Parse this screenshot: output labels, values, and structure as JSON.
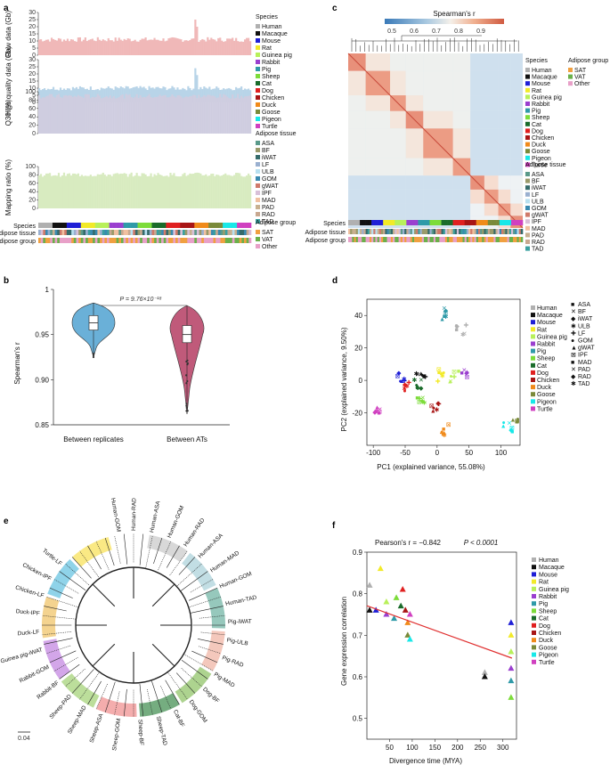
{
  "panel_letters": [
    "a",
    "b",
    "c",
    "d",
    "e",
    "f"
  ],
  "species": [
    {
      "name": "Human",
      "color": "#b0b0b0"
    },
    {
      "name": "Macaque",
      "color": "#111111"
    },
    {
      "name": "Mouse",
      "color": "#1f1fd6"
    },
    {
      "name": "Rat",
      "color": "#f2ea28"
    },
    {
      "name": "Guinea pig",
      "color": "#b8f05a"
    },
    {
      "name": "Rabbit",
      "color": "#9a3fcf"
    },
    {
      "name": "Pig",
      "color": "#2f9aa8"
    },
    {
      "name": "Sheep",
      "color": "#7ddc3a"
    },
    {
      "name": "Cat",
      "color": "#1a6b2a"
    },
    {
      "name": "Dog",
      "color": "#e02020"
    },
    {
      "name": "Chicken",
      "color": "#a81515"
    },
    {
      "name": "Duck",
      "color": "#f08a1a"
    },
    {
      "name": "Goose",
      "color": "#7a8a3a"
    },
    {
      "name": "Pigeon",
      "color": "#18e8e8"
    },
    {
      "name": "Turtle",
      "color": "#d040c0"
    }
  ],
  "tissues": [
    {
      "name": "ASA",
      "color": "#5a9a8a"
    },
    {
      "name": "BF",
      "color": "#9a9a6a"
    },
    {
      "name": "iWAT",
      "color": "#356b6b"
    },
    {
      "name": "LF",
      "color": "#9ab0d0"
    },
    {
      "name": "ULB",
      "color": "#b8e0f0"
    },
    {
      "name": "GOM",
      "color": "#3a8ab0"
    },
    {
      "name": "gWAT",
      "color": "#d07a6a"
    },
    {
      "name": "IPF",
      "color": "#d8c0d8"
    },
    {
      "name": "MAD",
      "color": "#f0c0a0"
    },
    {
      "name": "PAD",
      "color": "#c8b090"
    },
    {
      "name": "RAD",
      "color": "#c8a890"
    },
    {
      "name": "TAD",
      "color": "#3aa0a0"
    }
  ],
  "groups": [
    {
      "name": "SAT",
      "color": "#f0a040"
    },
    {
      "name": "VAT",
      "color": "#6ab04a"
    },
    {
      "name": "Other",
      "color": "#e8a0c8"
    }
  ],
  "legend_titles": {
    "species": "Species",
    "tissue": "Adipose tissue",
    "group": "Adipose group"
  },
  "track_labels": {
    "species": "Species",
    "tissue": "Adipose tissue",
    "group": "Adipose group"
  },
  "chart_data": [
    {
      "type": "bar",
      "panel": "a",
      "subplots": [
        {
          "ylabel": "Raw data (Gb)",
          "ylim": [
            0,
            30
          ],
          "yticks": [
            0,
            5,
            10,
            15,
            20,
            25,
            30
          ],
          "typical_value": 11,
          "outlier_value": 25,
          "color": "#f0b8b8"
        },
        {
          "ylabel": "High quality data (Gb)",
          "ylim": [
            0,
            30
          ],
          "yticks": [
            0,
            5,
            10,
            15,
            20,
            25,
            30
          ],
          "typical_value": 10,
          "outlier_value": 24,
          "color": "#b8d4e8"
        },
        {
          "ylabel": "Q30 (%)",
          "ylim": [
            0,
            100
          ],
          "yticks": [
            0,
            20,
            40,
            60,
            80,
            100
          ],
          "typical_value": 93,
          "color": "#cfcde0"
        },
        {
          "ylabel": "Mapping ratio (%)",
          "ylim": [
            0,
            100
          ],
          "yticks": [
            0,
            20,
            40,
            60,
            80,
            100
          ],
          "typical_value": 84,
          "color": "#d8ebc0"
        }
      ]
    },
    {
      "type": "violin",
      "panel": "b",
      "title": "P = 9.76×10⁻¹⁸",
      "ylabel": "Spearman's r",
      "ylim": [
        0.85,
        1
      ],
      "yticks": [
        "0.85",
        "0.90",
        "0.95",
        "1"
      ],
      "categories": [
        "Between replicates",
        "Between ATs"
      ],
      "series": [
        {
          "name": "Between replicates",
          "median": 0.963,
          "q1": 0.955,
          "q3": 0.971,
          "min": 0.925,
          "max": 0.985,
          "color": "#6ab0d8"
        },
        {
          "name": "Between ATs",
          "median": 0.95,
          "q1": 0.941,
          "q3": 0.96,
          "min": 0.862,
          "max": 0.982,
          "color": "#c05a7a"
        }
      ]
    },
    {
      "type": "heatmap",
      "panel": "c",
      "title": "Spearman's r",
      "colorbar_ticks": [
        "0.5",
        "0.6",
        "0.7",
        "0.8",
        "0.9"
      ],
      "range": [
        0.45,
        1
      ]
    },
    {
      "type": "scatter",
      "panel": "d",
      "xlabel": "PC1 (explained variance, 55.08%)",
      "ylabel": "PC2 (explained variance, 9.50%)",
      "xlim": [
        -110,
        130
      ],
      "ylim": [
        -40,
        50
      ],
      "xticks": [
        -100,
        -50,
        0,
        50,
        100
      ],
      "yticks": [
        -20,
        0,
        20,
        40
      ],
      "tissue_markers": [
        "ASA",
        "BF",
        "iWAT",
        "ULB",
        "LF",
        "GOM",
        "gWAT",
        "IPF",
        "MAD",
        "PAD",
        "RAD",
        "TAD"
      ],
      "clusters": [
        {
          "species": "Human",
          "x": 38,
          "y": 30
        },
        {
          "species": "Macaque",
          "x": -25,
          "y": 5
        },
        {
          "species": "Mouse",
          "x": -55,
          "y": 0
        },
        {
          "species": "Rat",
          "x": 5,
          "y": 2
        },
        {
          "species": "Guinea pig",
          "x": 28,
          "y": 2
        },
        {
          "species": "Rabbit",
          "x": 40,
          "y": 5
        },
        {
          "species": "Pig",
          "x": 15,
          "y": 40
        },
        {
          "species": "Sheep",
          "x": -25,
          "y": -12
        },
        {
          "species": "Cat",
          "x": -30,
          "y": -5
        },
        {
          "species": "Dog",
          "x": -45,
          "y": -5
        },
        {
          "species": "Chicken",
          "x": -5,
          "y": -17
        },
        {
          "species": "Duck",
          "x": 10,
          "y": -32
        },
        {
          "species": "Goose",
          "x": 125,
          "y": -25
        },
        {
          "species": "Pigeon",
          "x": 110,
          "y": -30
        },
        {
          "species": "Turtle",
          "x": -92,
          "y": -18
        }
      ]
    },
    {
      "type": "tree",
      "panel": "e",
      "scale_label": "0.04",
      "leaf_labels": [
        "Human-GOM",
        "Human-RAD",
        "Human-ASA",
        "Human-GOM",
        "Human-RAD",
        "Human-ASA",
        "Human-MAD",
        "Human-GOM",
        "Human-TAD",
        "Pig-iWAT",
        "Pig-ULB",
        "Pig-RAD",
        "Pig-MAD",
        "Dog-BF",
        "Dog-GOM",
        "Cat-BF",
        "Sheep-TAD",
        "Sheep-BF",
        "Sheep-GOM",
        "Sheep-ASA",
        "Sheep-MAD",
        "Sheep-PAD",
        "Rabbit-BF",
        "Rabbit-GOM",
        "Guinea pig-iWAT",
        "Duck-LF",
        "Duck-IPF",
        "Chicken-LF",
        "Chicken-IPF",
        "Turtle-LF"
      ]
    },
    {
      "type": "scatter",
      "panel": "f",
      "title": "Pearson's r = −0.842",
      "pvalue": "P < 0.0001",
      "xlabel": "Divergence time (MYA)",
      "ylabel": "Gene expression correlation",
      "xlim": [
        0,
        330
      ],
      "ylim": [
        0.45,
        0.9
      ],
      "xticks": [
        50,
        100,
        150,
        200,
        250,
        300
      ],
      "yticks": [
        0.5,
        0.6,
        0.7,
        0.8,
        0.9
      ],
      "regression": {
        "x": [
          0,
          320
        ],
        "y": [
          0.771,
          0.645
        ]
      },
      "points": [
        {
          "x": 6,
          "y": 0.82
        },
        {
          "x": 6,
          "y": 0.76
        },
        {
          "x": 20,
          "y": 0.76
        },
        {
          "x": 30,
          "y": 0.86
        },
        {
          "x": 43,
          "y": 0.78
        },
        {
          "x": 43,
          "y": 0.75
        },
        {
          "x": 60,
          "y": 0.74
        },
        {
          "x": 65,
          "y": 0.79
        },
        {
          "x": 75,
          "y": 0.77
        },
        {
          "x": 79,
          "y": 0.81
        },
        {
          "x": 85,
          "y": 0.76
        },
        {
          "x": 90,
          "y": 0.73
        },
        {
          "x": 90,
          "y": 0.7
        },
        {
          "x": 95,
          "y": 0.69
        },
        {
          "x": 95,
          "y": 0.75
        },
        {
          "x": 260,
          "y": 0.61
        },
        {
          "x": 260,
          "y": 0.6
        },
        {
          "x": 318,
          "y": 0.73
        },
        {
          "x": 318,
          "y": 0.7
        },
        {
          "x": 318,
          "y": 0.66
        },
        {
          "x": 318,
          "y": 0.62
        },
        {
          "x": 318,
          "y": 0.59
        },
        {
          "x": 318,
          "y": 0.55
        }
      ]
    }
  ]
}
